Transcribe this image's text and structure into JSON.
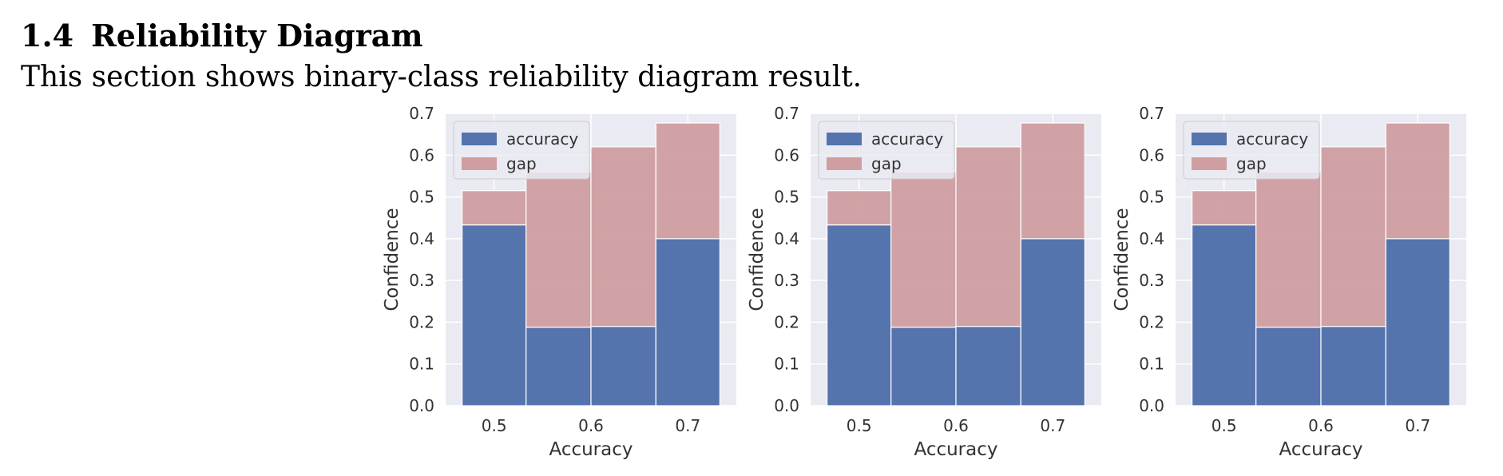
{
  "section": {
    "number": "1.4",
    "title": "Reliability Diagram",
    "text": "This section shows binary-class reliability diagram result."
  },
  "colors": {
    "accuracy": "#5573ad",
    "gap": "#cf9ea0",
    "plot_bg": "#eaeaf2",
    "grid": "#ffffff",
    "text": "#333333"
  },
  "chart_data": [
    {
      "type": "bar",
      "xlabel": "Accuracy",
      "ylabel": "Confidence",
      "ylim": [
        0,
        0.7
      ],
      "xlim": [
        0.45,
        0.75
      ],
      "x_ticks": [
        "0.5",
        "0.6",
        "0.7"
      ],
      "y_ticks": [
        "0.0",
        "0.1",
        "0.2",
        "0.3",
        "0.4",
        "0.5",
        "0.6",
        "0.7"
      ],
      "bin_edges": [
        0.467,
        0.533,
        0.6,
        0.667,
        0.733
      ],
      "grid": true,
      "legend_position": "top-left",
      "series": [
        {
          "name": "accuracy",
          "values": [
            0.433,
            0.188,
            0.19,
            0.4
          ]
        },
        {
          "name": "gap",
          "values": [
            0.082,
            0.372,
            0.43,
            0.277
          ]
        }
      ]
    },
    {
      "type": "bar",
      "xlabel": "Accuracy",
      "ylabel": "Confidence",
      "ylim": [
        0,
        0.7
      ],
      "xlim": [
        0.45,
        0.75
      ],
      "x_ticks": [
        "0.5",
        "0.6",
        "0.7"
      ],
      "y_ticks": [
        "0.0",
        "0.1",
        "0.2",
        "0.3",
        "0.4",
        "0.5",
        "0.6",
        "0.7"
      ],
      "bin_edges": [
        0.467,
        0.533,
        0.6,
        0.667,
        0.733
      ],
      "grid": true,
      "legend_position": "top-left",
      "series": [
        {
          "name": "accuracy",
          "values": [
            0.433,
            0.188,
            0.19,
            0.4
          ]
        },
        {
          "name": "gap",
          "values": [
            0.082,
            0.372,
            0.43,
            0.277
          ]
        }
      ]
    },
    {
      "type": "bar",
      "xlabel": "Accuracy",
      "ylabel": "Confidence",
      "ylim": [
        0,
        0.7
      ],
      "xlim": [
        0.45,
        0.75
      ],
      "x_ticks": [
        "0.5",
        "0.6",
        "0.7"
      ],
      "y_ticks": [
        "0.0",
        "0.1",
        "0.2",
        "0.3",
        "0.4",
        "0.5",
        "0.6",
        "0.7"
      ],
      "bin_edges": [
        0.467,
        0.533,
        0.6,
        0.667,
        0.733
      ],
      "grid": true,
      "legend_position": "top-left",
      "series": [
        {
          "name": "accuracy",
          "values": [
            0.433,
            0.188,
            0.19,
            0.4
          ]
        },
        {
          "name": "gap",
          "values": [
            0.082,
            0.372,
            0.43,
            0.277
          ]
        }
      ]
    }
  ]
}
